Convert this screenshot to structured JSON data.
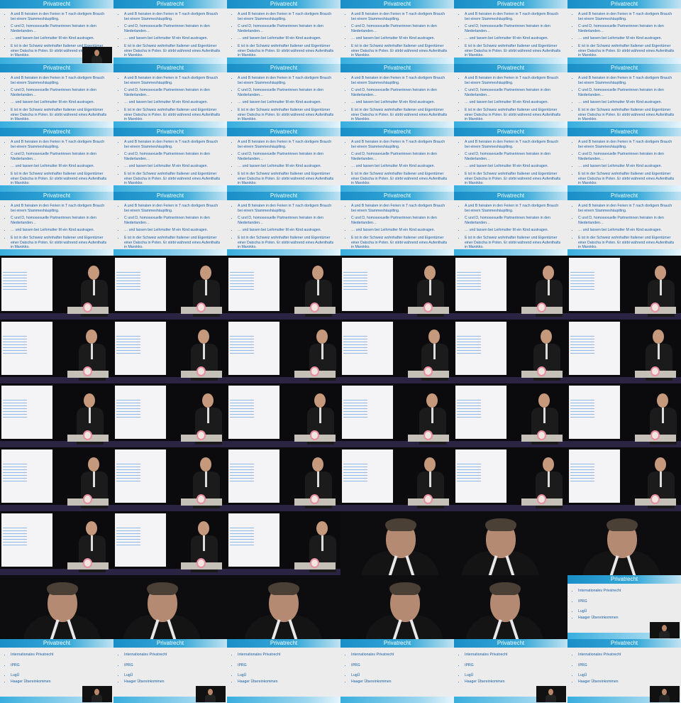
{
  "slide": {
    "title": "Privatrecht",
    "items": [
      "A und B heiraten in den Ferien in T nach dortigem Brauch bei einem Stammeshäuptling.",
      "C und D, homosexuelle Partnerinnen heiraten in den Niederlanden…",
      "… und lassen bei Leihmutter M ein Kind austragen.",
      "E ist in der Schweiz wohnhafter Italiener und Eigentümer einer Datscha in Polen. Er stirbt während eines Aufenthalts in Marokko."
    ]
  },
  "slide2": {
    "title": "Privatrecht",
    "items": [
      "Internationales Privatrecht",
      "IPRG",
      "LugÜ",
      "Haager Übereinkommen"
    ]
  },
  "grid": {
    "columns": 6,
    "rows": 11
  },
  "cells": [
    "slide-pip",
    "slide",
    "slide",
    "slide",
    "slide",
    "slide",
    "slide",
    "slide",
    "slide",
    "slide",
    "slide",
    "slide",
    "slide",
    "slide",
    "slide",
    "slide",
    "slide",
    "slide",
    "slide",
    "slide",
    "slide",
    "slide",
    "slide",
    "slide",
    "stage",
    "stage",
    "stage",
    "stage",
    "stage",
    "stage",
    "stage",
    "stage",
    "stage",
    "stage",
    "stage",
    "stage",
    "stage",
    "stage",
    "stage",
    "stage",
    "stage",
    "stage",
    "stage",
    "stage",
    "stage",
    "stage",
    "stage",
    "stage",
    "stage",
    "stage",
    "stage",
    "close",
    "close",
    "close",
    "close",
    "close",
    "close",
    "close",
    "close",
    "slide2-pip",
    "slide2-pip",
    "slide2-pip",
    "slide2",
    "slide2",
    "slide2-pip",
    "slide2-pip"
  ],
  "colors": {
    "slide_bar": "#1a8fc7",
    "slide_text": "#1a5fa8",
    "slide_bg": "#ececec",
    "stage_floor": "#2a2342"
  }
}
